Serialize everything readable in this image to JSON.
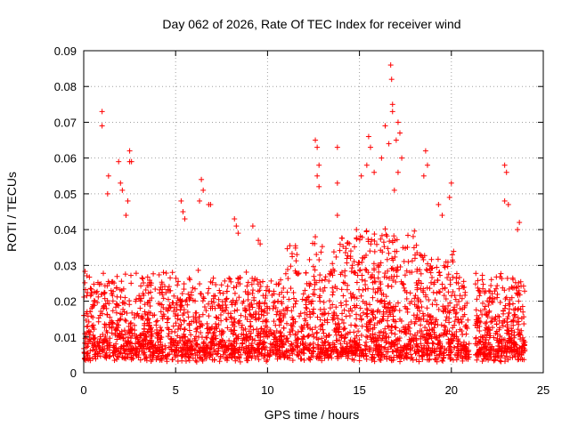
{
  "chart_data": {
    "type": "scatter",
    "title": "Day 062 of 2026, Rate Of TEC Index for receiver wind",
    "xlabel": "GPS time / hours",
    "ylabel": "ROTI / TECUs",
    "xlim": [
      0,
      25
    ],
    "ylim": [
      0,
      0.09
    ],
    "x_ticks": [
      "0",
      "5",
      "10",
      "15",
      "20",
      "25"
    ],
    "y_ticks": [
      "0",
      "0.01",
      "0.02",
      "0.03",
      "0.04",
      "0.05",
      "0.06",
      "0.07",
      "0.08",
      "0.09"
    ],
    "grid": true,
    "marker": "+",
    "colors": {
      "series": "#ff0000",
      "grid": "#a0a0a0",
      "axes": "#000000"
    },
    "data_gap_hours": [
      21.0,
      21.3
    ],
    "points": [
      [
        1.0,
        0.073
      ],
      [
        1.0,
        0.069
      ],
      [
        1.35,
        0.055
      ],
      [
        1.3,
        0.05
      ],
      [
        1.9,
        0.059
      ],
      [
        2.0,
        0.053
      ],
      [
        2.1,
        0.051
      ],
      [
        2.5,
        0.062
      ],
      [
        2.5,
        0.059
      ],
      [
        2.6,
        0.059
      ],
      [
        2.4,
        0.048
      ],
      [
        2.3,
        0.044
      ],
      [
        5.3,
        0.048
      ],
      [
        5.4,
        0.045
      ],
      [
        5.5,
        0.043
      ],
      [
        6.4,
        0.054
      ],
      [
        6.5,
        0.051
      ],
      [
        6.3,
        0.048
      ],
      [
        6.8,
        0.047
      ],
      [
        6.9,
        0.047
      ],
      [
        8.2,
        0.043
      ],
      [
        8.3,
        0.041
      ],
      [
        8.4,
        0.039
      ],
      [
        9.2,
        0.041
      ],
      [
        9.5,
        0.037
      ],
      [
        9.6,
        0.036
      ],
      [
        12.6,
        0.065
      ],
      [
        12.7,
        0.063
      ],
      [
        12.8,
        0.058
      ],
      [
        12.7,
        0.055
      ],
      [
        12.8,
        0.052
      ],
      [
        13.8,
        0.063
      ],
      [
        13.8,
        0.053
      ],
      [
        13.8,
        0.044
      ],
      [
        12.6,
        0.038
      ],
      [
        15.1,
        0.055
      ],
      [
        15.4,
        0.058
      ],
      [
        15.5,
        0.066
      ],
      [
        15.6,
        0.063
      ],
      [
        15.8,
        0.056
      ],
      [
        16.2,
        0.06
      ],
      [
        16.4,
        0.069
      ],
      [
        16.6,
        0.064
      ],
      [
        16.7,
        0.086
      ],
      [
        16.75,
        0.082
      ],
      [
        16.8,
        0.075
      ],
      [
        16.8,
        0.073
      ],
      [
        17.0,
        0.065
      ],
      [
        17.1,
        0.07
      ],
      [
        17.2,
        0.067
      ],
      [
        17.3,
        0.06
      ],
      [
        17.1,
        0.056
      ],
      [
        16.9,
        0.051
      ],
      [
        18.6,
        0.062
      ],
      [
        18.7,
        0.058
      ],
      [
        18.5,
        0.055
      ],
      [
        19.3,
        0.047
      ],
      [
        19.5,
        0.044
      ],
      [
        20.0,
        0.053
      ],
      [
        19.9,
        0.049
      ],
      [
        22.9,
        0.058
      ],
      [
        23.0,
        0.056
      ],
      [
        22.9,
        0.048
      ],
      [
        23.1,
        0.047
      ],
      [
        23.7,
        0.042
      ],
      [
        23.6,
        0.04
      ]
    ]
  }
}
